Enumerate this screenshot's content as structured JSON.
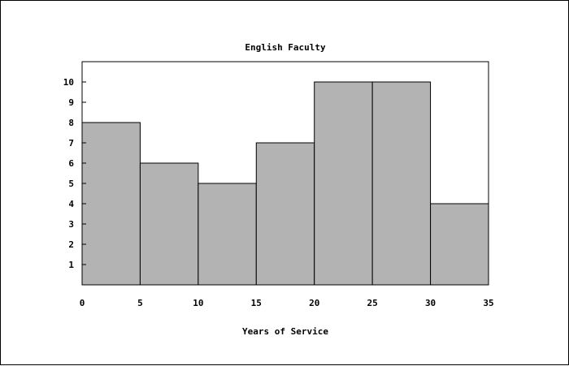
{
  "chart_data": {
    "type": "bar",
    "title": "English Faculty",
    "xlabel": "Years of Service",
    "ylabel": "",
    "bins": [
      {
        "start": 0,
        "end": 5,
        "value": 8
      },
      {
        "start": 5,
        "end": 10,
        "value": 6
      },
      {
        "start": 10,
        "end": 15,
        "value": 5
      },
      {
        "start": 15,
        "end": 20,
        "value": 7
      },
      {
        "start": 20,
        "end": 25,
        "value": 10
      },
      {
        "start": 25,
        "end": 30,
        "value": 10
      },
      {
        "start": 30,
        "end": 35,
        "value": 4
      }
    ],
    "xlim": [
      0,
      35
    ],
    "ylim": [
      0,
      11
    ],
    "x_ticks": [
      "0",
      "5",
      "10",
      "15",
      "20",
      "25",
      "30",
      "35"
    ],
    "y_ticks": [
      "1",
      "2",
      "3",
      "4",
      "5",
      "6",
      "7",
      "8",
      "9",
      "10"
    ],
    "grid": false,
    "bar_color": "#b3b3b3",
    "edge_color": "#000000"
  }
}
